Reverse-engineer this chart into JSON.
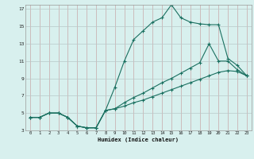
{
  "xlabel": "Humidex (Indice chaleur)",
  "bg_color": "#d8f0ee",
  "grid_color_v": "#c8a8a8",
  "grid_color_h": "#b8c8c8",
  "line_color": "#1a7060",
  "xlim": [
    -0.5,
    23.5
  ],
  "ylim": [
    3,
    17.5
  ],
  "xticks": [
    0,
    1,
    2,
    3,
    4,
    5,
    6,
    7,
    8,
    9,
    10,
    11,
    12,
    13,
    14,
    15,
    16,
    17,
    18,
    19,
    20,
    21,
    22,
    23
  ],
  "yticks": [
    3,
    5,
    7,
    9,
    11,
    13,
    15,
    17
  ],
  "line1_x": [
    0,
    1,
    2,
    3,
    4,
    5,
    6,
    7,
    8,
    9,
    10,
    11,
    12,
    13,
    14,
    15,
    16,
    17,
    18,
    19,
    20,
    21,
    22,
    23
  ],
  "line1_y": [
    4.5,
    4.5,
    5.0,
    5.0,
    4.5,
    3.5,
    3.3,
    3.3,
    5.3,
    8.0,
    11.0,
    13.5,
    14.5,
    15.5,
    16.0,
    17.5,
    16.0,
    15.5,
    15.3,
    15.2,
    15.2,
    11.3,
    10.5,
    9.3
  ],
  "line2_x": [
    0,
    1,
    2,
    3,
    4,
    5,
    6,
    7,
    8,
    9,
    10,
    11,
    12,
    13,
    14,
    15,
    16,
    17,
    18,
    19,
    20,
    21,
    22,
    23
  ],
  "line2_y": [
    4.5,
    4.5,
    5.0,
    5.0,
    4.5,
    3.5,
    3.3,
    3.3,
    5.3,
    5.5,
    6.2,
    6.8,
    7.3,
    7.9,
    8.5,
    9.0,
    9.6,
    10.2,
    10.8,
    13.0,
    11.0,
    11.0,
    10.0,
    9.3
  ],
  "line3_x": [
    0,
    1,
    2,
    3,
    4,
    5,
    6,
    7,
    8,
    9,
    10,
    11,
    12,
    13,
    14,
    15,
    16,
    17,
    18,
    19,
    20,
    21,
    22,
    23
  ],
  "line3_y": [
    4.5,
    4.5,
    5.0,
    5.0,
    4.5,
    3.5,
    3.3,
    3.3,
    5.3,
    5.5,
    5.8,
    6.2,
    6.5,
    6.9,
    7.3,
    7.7,
    8.1,
    8.5,
    8.9,
    9.3,
    9.7,
    9.9,
    9.8,
    9.3
  ]
}
